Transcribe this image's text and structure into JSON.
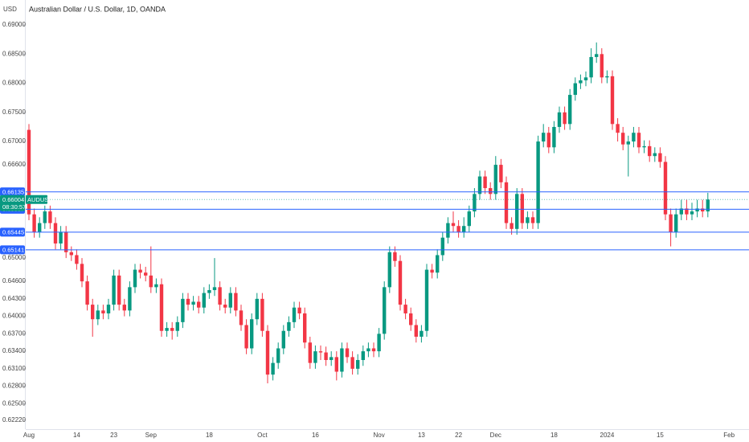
{
  "chart_data": {
    "type": "candlestick",
    "title": "Australian Dollar / U.S. Dollar, 1D, OANDA",
    "unit_label": "USD",
    "up_color": "#089981",
    "down_color": "#f23645",
    "ylim": [
      0.6205,
      0.6918
    ],
    "yticks": [
      {
        "value": 0.69,
        "label": "0.69000"
      },
      {
        "value": 0.685,
        "label": "0.68500"
      },
      {
        "value": 0.68,
        "label": "0.68000"
      },
      {
        "value": 0.675,
        "label": "0.67500"
      },
      {
        "value": 0.67,
        "label": "0.67000"
      },
      {
        "value": 0.666,
        "label": "0.66600"
      },
      {
        "value": 0.65,
        "label": "0.65000"
      },
      {
        "value": 0.646,
        "label": "0.64600"
      },
      {
        "value": 0.643,
        "label": "0.64300"
      },
      {
        "value": 0.64,
        "label": "0.64000"
      },
      {
        "value": 0.637,
        "label": "0.63700"
      },
      {
        "value": 0.634,
        "label": "0.63400"
      },
      {
        "value": 0.631,
        "label": "0.63100"
      },
      {
        "value": 0.628,
        "label": "0.62800"
      },
      {
        "value": 0.625,
        "label": "0.62500"
      },
      {
        "value": 0.6222,
        "label": "0.62220"
      }
    ],
    "levels": {
      "color": "#2962ff",
      "values": [
        0.66135,
        0.65837,
        0.65445,
        0.65141
      ]
    },
    "last_price": {
      "value": 0.66004,
      "symbol": "AUDUSD",
      "countdown": "08:30:57",
      "color": "#089981"
    },
    "categories": [
      "Aug",
      null,
      null,
      null,
      null,
      null,
      null,
      null,
      null,
      "14",
      null,
      null,
      null,
      null,
      null,
      null,
      "23",
      null,
      null,
      null,
      null,
      null,
      null,
      "Sep",
      null,
      null,
      null,
      null,
      null,
      null,
      null,
      null,
      null,
      null,
      "18",
      null,
      null,
      null,
      null,
      null,
      null,
      null,
      null,
      null,
      "Oct",
      null,
      null,
      null,
      null,
      null,
      null,
      null,
      null,
      null,
      "16",
      null,
      null,
      null,
      null,
      null,
      null,
      null,
      null,
      null,
      null,
      null,
      "Nov",
      null,
      null,
      null,
      null,
      null,
      null,
      null,
      "13",
      null,
      null,
      null,
      null,
      null,
      null,
      "22",
      null,
      null,
      null,
      null,
      null,
      null,
      "Dec",
      null,
      null,
      null,
      null,
      null,
      null,
      null,
      null,
      null,
      null,
      "18",
      null,
      null,
      null,
      null,
      null,
      null,
      null,
      null,
      null,
      "2024",
      null,
      null,
      null,
      null,
      null,
      null,
      null,
      null,
      null,
      "15",
      null,
      null,
      null,
      null,
      null,
      null,
      null,
      null,
      null,
      null,
      null,
      null,
      "Feb"
    ],
    "open": [
      0.672,
      0.6575,
      0.6545,
      0.656,
      0.658,
      0.656,
      0.6525,
      0.6545,
      0.651,
      0.6505,
      0.649,
      0.646,
      0.642,
      0.6395,
      0.641,
      0.6405,
      0.642,
      0.647,
      0.642,
      0.641,
      0.645,
      0.648,
      0.6475,
      0.647,
      0.645,
      0.6455,
      0.6375,
      0.638,
      0.6375,
      0.639,
      0.643,
      0.642,
      0.6425,
      0.6415,
      0.644,
      0.6445,
      0.645,
      0.642,
      0.6415,
      0.644,
      0.641,
      0.6385,
      0.6345,
      0.6395,
      0.643,
      0.6375,
      0.63,
      0.632,
      0.6345,
      0.6375,
      0.639,
      0.6415,
      0.6405,
      0.6355,
      0.632,
      0.634,
      0.6338,
      0.6325,
      0.633,
      0.6305,
      0.6345,
      0.633,
      0.631,
      0.6325,
      0.634,
      0.6345,
      0.634,
      0.637,
      0.645,
      0.651,
      0.6495,
      0.642,
      0.6405,
      0.6385,
      0.6365,
      0.6375,
      0.648,
      0.6475,
      0.6505,
      0.6535,
      0.656,
      0.6555,
      0.6545,
      0.6555,
      0.658,
      0.661,
      0.664,
      0.662,
      0.661,
      0.666,
      0.663,
      0.656,
      0.655,
      0.661,
      0.656,
      0.657,
      0.656,
      0.67,
      0.6715,
      0.669,
      0.6725,
      0.675,
      0.673,
      0.678,
      0.68,
      0.6805,
      0.681,
      0.6845,
      0.685,
      0.681,
      0.6812,
      0.673,
      0.6715,
      0.6695,
      0.67,
      0.6715,
      0.669,
      0.6692,
      0.6675,
      0.668,
      0.6665,
      0.6575,
      0.6545,
      0.6575,
      0.6585,
      0.6575,
      0.658,
      0.6585,
      0.658,
      null,
      null,
      null,
      null
    ],
    "high": [
      0.673,
      0.6585,
      0.657,
      0.659,
      0.659,
      0.657,
      0.6555,
      0.6555,
      0.652,
      0.6515,
      0.65,
      0.647,
      0.643,
      0.642,
      0.642,
      0.643,
      0.648,
      0.648,
      0.643,
      0.646,
      0.649,
      0.649,
      0.6485,
      0.652,
      0.6465,
      0.6465,
      0.639,
      0.639,
      0.64,
      0.644,
      0.644,
      0.6435,
      0.6435,
      0.645,
      0.6455,
      0.65,
      0.646,
      0.643,
      0.645,
      0.645,
      0.642,
      0.6395,
      0.6405,
      0.644,
      0.644,
      0.6385,
      0.633,
      0.6355,
      0.6385,
      0.64,
      0.6425,
      0.6425,
      0.6415,
      0.6365,
      0.635,
      0.635,
      0.6348,
      0.634,
      0.634,
      0.6355,
      0.6355,
      0.634,
      0.6335,
      0.635,
      0.6355,
      0.6355,
      0.638,
      0.646,
      0.652,
      0.652,
      0.6505,
      0.643,
      0.6415,
      0.6395,
      0.6385,
      0.649,
      0.649,
      0.6515,
      0.6545,
      0.657,
      0.658,
      0.6565,
      0.657,
      0.659,
      0.662,
      0.665,
      0.665,
      0.663,
      0.6675,
      0.667,
      0.664,
      0.657,
      0.662,
      0.662,
      0.658,
      0.658,
      0.671,
      0.673,
      0.6725,
      0.6735,
      0.676,
      0.676,
      0.679,
      0.681,
      0.6815,
      0.682,
      0.686,
      0.687,
      0.686,
      0.6822,
      0.6822,
      0.674,
      0.6725,
      0.671,
      0.6725,
      0.6725,
      0.6702,
      0.6702,
      0.669,
      0.669,
      0.6675,
      0.6585,
      0.6585,
      0.66,
      0.66,
      0.6595,
      0.66,
      0.66,
      0.6612,
      null,
      null,
      null,
      null
    ],
    "low": [
      0.6565,
      0.6535,
      0.6535,
      0.655,
      0.655,
      0.6515,
      0.6515,
      0.65,
      0.6495,
      0.648,
      0.645,
      0.641,
      0.6365,
      0.6385,
      0.6395,
      0.6395,
      0.641,
      0.641,
      0.64,
      0.64,
      0.644,
      0.6465,
      0.646,
      0.644,
      0.644,
      0.6365,
      0.6365,
      0.636,
      0.6365,
      0.638,
      0.641,
      0.641,
      0.6405,
      0.6405,
      0.643,
      0.6435,
      0.641,
      0.6405,
      0.6405,
      0.64,
      0.6375,
      0.6335,
      0.6335,
      0.6385,
      0.6365,
      0.6285,
      0.629,
      0.631,
      0.6335,
      0.6365,
      0.638,
      0.6395,
      0.6345,
      0.631,
      0.631,
      0.6325,
      0.6315,
      0.6315,
      0.629,
      0.6295,
      0.632,
      0.63,
      0.63,
      0.6315,
      0.633,
      0.633,
      0.633,
      0.636,
      0.644,
      0.6485,
      0.641,
      0.6395,
      0.6375,
      0.6355,
      0.6355,
      0.6365,
      0.6465,
      0.6465,
      0.6495,
      0.6525,
      0.6545,
      0.6535,
      0.6535,
      0.6545,
      0.657,
      0.66,
      0.661,
      0.66,
      0.66,
      0.662,
      0.655,
      0.654,
      0.654,
      0.655,
      0.655,
      0.655,
      0.655,
      0.669,
      0.668,
      0.668,
      0.6715,
      0.672,
      0.672,
      0.677,
      0.679,
      0.6795,
      0.68,
      0.6835,
      0.68,
      0.68,
      0.672,
      0.67,
      0.6685,
      0.664,
      0.669,
      0.668,
      0.668,
      0.6665,
      0.6665,
      0.6655,
      0.6565,
      0.652,
      0.6535,
      0.6565,
      0.6565,
      0.6565,
      0.657,
      0.657,
      0.657,
      null,
      null,
      null,
      null
    ],
    "close": [
      0.6575,
      0.6545,
      0.656,
      0.658,
      0.656,
      0.6525,
      0.6545,
      0.651,
      0.6505,
      0.649,
      0.646,
      0.642,
      0.6395,
      0.641,
      0.6405,
      0.642,
      0.647,
      0.642,
      0.641,
      0.645,
      0.648,
      0.6475,
      0.647,
      0.645,
      0.6455,
      0.6375,
      0.638,
      0.6375,
      0.639,
      0.643,
      0.642,
      0.6425,
      0.6415,
      0.644,
      0.6445,
      0.645,
      0.642,
      0.6415,
      0.644,
      0.641,
      0.6385,
      0.6345,
      0.6395,
      0.643,
      0.6375,
      0.63,
      0.632,
      0.6345,
      0.6375,
      0.639,
      0.6415,
      0.6405,
      0.6355,
      0.632,
      0.634,
      0.6338,
      0.6325,
      0.633,
      0.6305,
      0.6345,
      0.633,
      0.631,
      0.6325,
      0.634,
      0.6345,
      0.634,
      0.637,
      0.645,
      0.651,
      0.6495,
      0.642,
      0.6405,
      0.6385,
      0.6365,
      0.6375,
      0.648,
      0.6475,
      0.6505,
      0.6535,
      0.656,
      0.6555,
      0.6545,
      0.6555,
      0.658,
      0.661,
      0.664,
      0.662,
      0.661,
      0.666,
      0.663,
      0.656,
      0.655,
      0.661,
      0.656,
      0.657,
      0.656,
      0.67,
      0.6715,
      0.669,
      0.6725,
      0.675,
      0.673,
      0.678,
      0.68,
      0.6805,
      0.681,
      0.6845,
      0.685,
      0.681,
      0.6812,
      0.673,
      0.6715,
      0.6695,
      0.67,
      0.6715,
      0.669,
      0.6692,
      0.6675,
      0.668,
      0.6665,
      0.6575,
      0.6545,
      0.6575,
      0.6585,
      0.6575,
      0.658,
      0.6585,
      0.658,
      0.66004,
      null,
      null,
      null,
      null
    ]
  }
}
